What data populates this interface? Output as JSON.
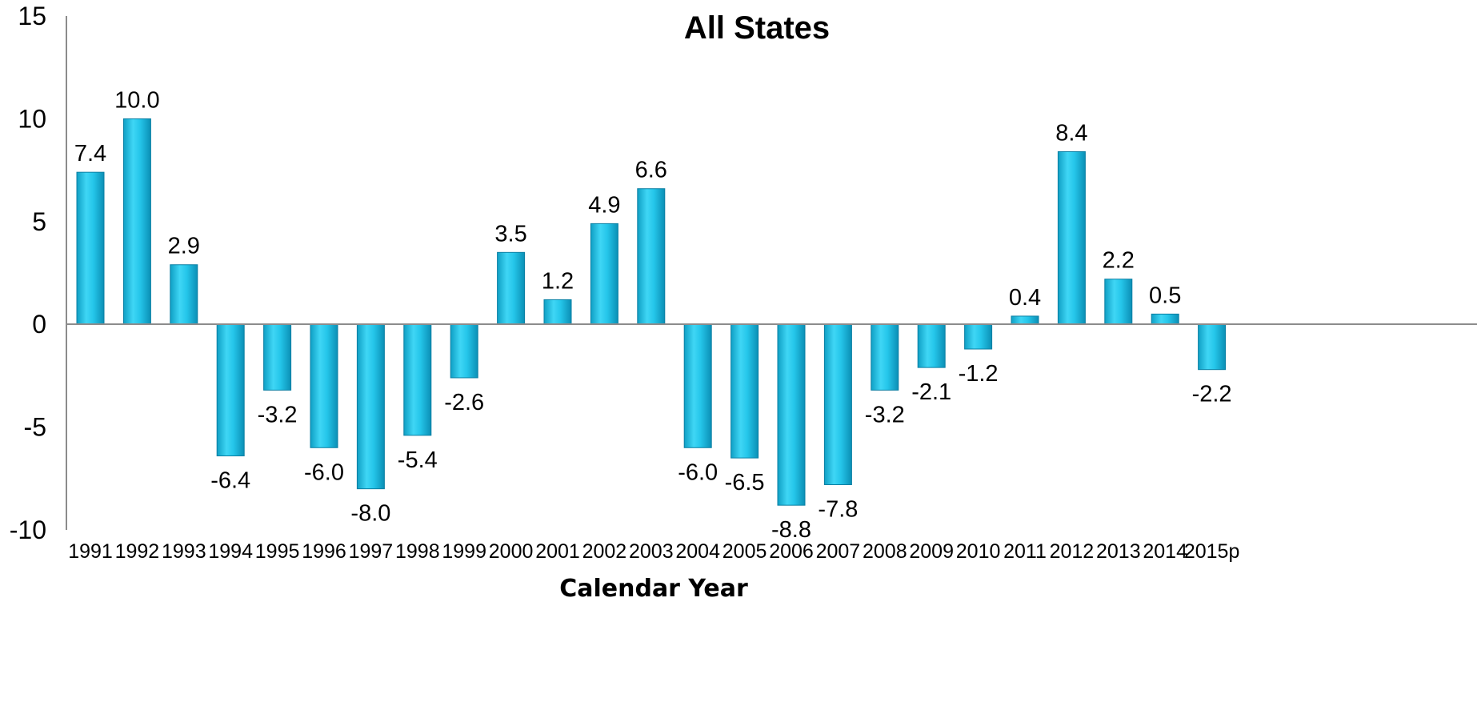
{
  "chart_data": {
    "type": "bar",
    "title": "All States",
    "xlabel": "Calendar Year",
    "ylabel": "",
    "ylim": [
      -10,
      15
    ],
    "yticks": [
      15,
      10,
      5,
      0,
      -5,
      -10
    ],
    "grid": false,
    "legend": "none",
    "bar_color": "#1fc3e6",
    "categories": [
      "1991",
      "1992",
      "1993",
      "1994",
      "1995",
      "1996",
      "1997",
      "1998",
      "1999",
      "2000",
      "2001",
      "2002",
      "2003",
      "2004",
      "2005",
      "2006",
      "2007",
      "2008",
      "2009",
      "2010",
      "2011",
      "2012",
      "2013",
      "2014",
      "2015p"
    ],
    "values": [
      7.4,
      10.0,
      2.9,
      -6.4,
      -3.2,
      -6.0,
      -8.0,
      -5.4,
      -2.6,
      3.5,
      1.2,
      4.9,
      6.6,
      -6.0,
      -6.5,
      -8.8,
      -7.8,
      -3.2,
      -2.1,
      -1.2,
      0.4,
      8.4,
      2.2,
      0.5,
      -2.2
    ],
    "data_labels": [
      "7.4",
      "10.0",
      "2.9",
      "-6.4",
      "-3.2",
      "-6.0",
      "-8.0",
      "-5.4",
      "-2.6",
      "3.5",
      "1.2",
      "4.9",
      "6.6",
      "-6.0",
      "-6.5",
      "-8.8",
      "-7.8",
      "-3.2",
      "-2.1",
      "-1.2",
      "0.4",
      "8.4",
      "2.2",
      "0.5",
      "-2.2"
    ]
  }
}
